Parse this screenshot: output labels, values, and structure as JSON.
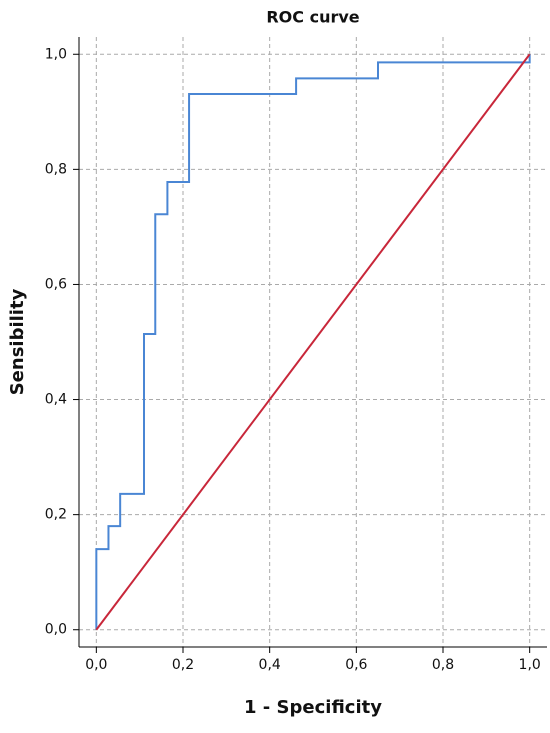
{
  "chart_data": {
    "type": "line",
    "title": "ROC curve",
    "xlabel": "1 - Specificity",
    "ylabel": "Sensibility",
    "xlim": [
      -0.04,
      1.04
    ],
    "ylim": [
      -0.03,
      1.03
    ],
    "xticks": [
      {
        "value": 0,
        "label": "0,0"
      },
      {
        "value": 0.2,
        "label": "0,2"
      },
      {
        "value": 0.4,
        "label": "0,4"
      },
      {
        "value": 0.6,
        "label": "0,6"
      },
      {
        "value": 0.8,
        "label": "0,8"
      },
      {
        "value": 1,
        "label": "1,0"
      }
    ],
    "yticks": [
      {
        "value": 0,
        "label": "0,0"
      },
      {
        "value": 0.2,
        "label": "0,2"
      },
      {
        "value": 0.4,
        "label": "0,4"
      },
      {
        "value": 0.6,
        "label": "0,6"
      },
      {
        "value": 0.8,
        "label": "0,8"
      },
      {
        "value": 1,
        "label": "1,0"
      }
    ],
    "grid": true,
    "series": [
      {
        "color": "#4a86d4",
        "x": [
          0,
          0,
          0.028,
          0.028,
          0.055,
          0.055,
          0.11,
          0.11,
          0.136,
          0.136,
          0.164,
          0.164,
          0.214,
          0.214,
          0.461,
          0.461,
          0.65,
          0.65,
          1,
          1
        ],
        "values": [
          0,
          0.14,
          0.14,
          0.18,
          0.18,
          0.236,
          0.236,
          0.514,
          0.514,
          0.722,
          0.722,
          0.778,
          0.778,
          0.931,
          0.931,
          0.958,
          0.958,
          0.986,
          0.986,
          1
        ]
      },
      {
        "color": "#c8273a",
        "x": [
          0,
          1
        ],
        "values": [
          0,
          1
        ]
      }
    ]
  }
}
